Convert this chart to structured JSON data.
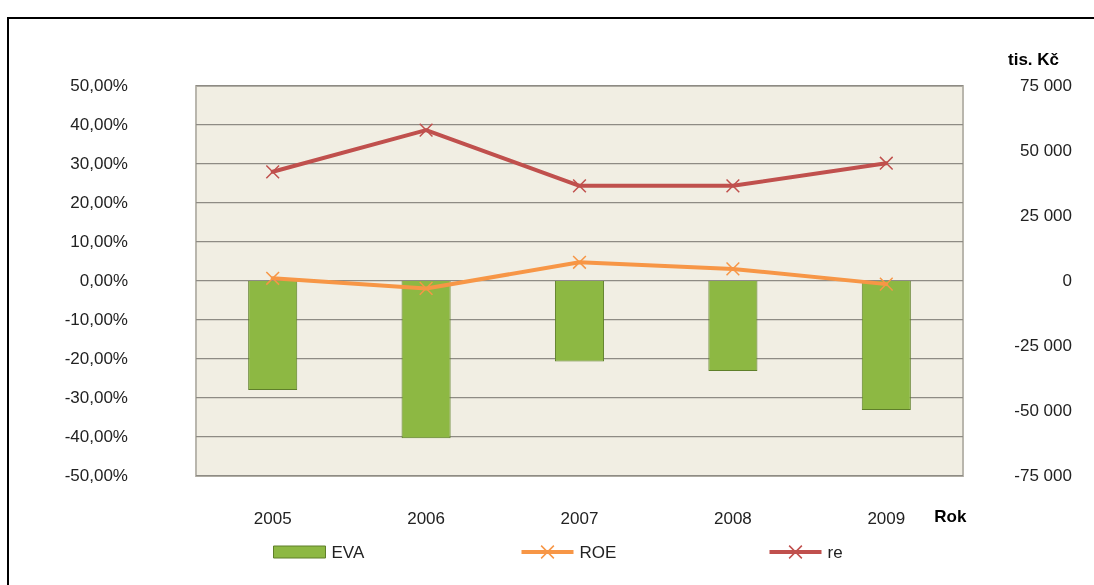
{
  "chart_data": {
    "type": "bar",
    "xlabel": "Rok",
    "y2label": "tis. Kč",
    "categories": [
      "2005",
      "2006",
      "2007",
      "2008",
      "2009"
    ],
    "series": [
      {
        "name": "EVA",
        "axis": "y2",
        "color": "#8db843",
        "values": [
          -41900,
          -60500,
          -31000,
          -34600,
          -49600
        ]
      },
      {
        "name": "ROE",
        "type": "line",
        "color": "#f79646",
        "values": [
          0.7,
          -1.9,
          4.8,
          3.1,
          -0.8
        ]
      },
      {
        "name": "re",
        "type": "line",
        "color": "#c0504d",
        "values": [
          28.0,
          38.7,
          24.4,
          24.4,
          30.2
        ]
      }
    ],
    "ylim": [
      -50,
      50
    ],
    "yticks": [
      {
        "value": -50,
        "label": "-50,00%"
      },
      {
        "value": -40,
        "label": "-40,00%"
      },
      {
        "value": -30,
        "label": "-30,00%"
      },
      {
        "value": -20,
        "label": "-20,00%"
      },
      {
        "value": -10,
        "label": "-10,00%"
      },
      {
        "value": 0,
        "label": "0,00%"
      },
      {
        "value": 10,
        "label": "10,00%"
      },
      {
        "value": 20,
        "label": "20,00%"
      },
      {
        "value": 30,
        "label": "30,00%"
      },
      {
        "value": 40,
        "label": "40,00%"
      },
      {
        "value": 50,
        "label": "50,00%"
      }
    ],
    "y2lim": [
      -75000,
      75000
    ],
    "y2ticks": [
      {
        "value": -75000,
        "label": "-75 000"
      },
      {
        "value": -50000,
        "label": "-50 000"
      },
      {
        "value": -25000,
        "label": "-25 000"
      },
      0,
      {
        "value": 25000,
        "label": "25 000"
      },
      {
        "value": 50000,
        "label": "50 000"
      },
      {
        "value": 75000,
        "label": "75 000"
      }
    ],
    "grid": "y",
    "legend": "bottom",
    "marker": "cross"
  }
}
